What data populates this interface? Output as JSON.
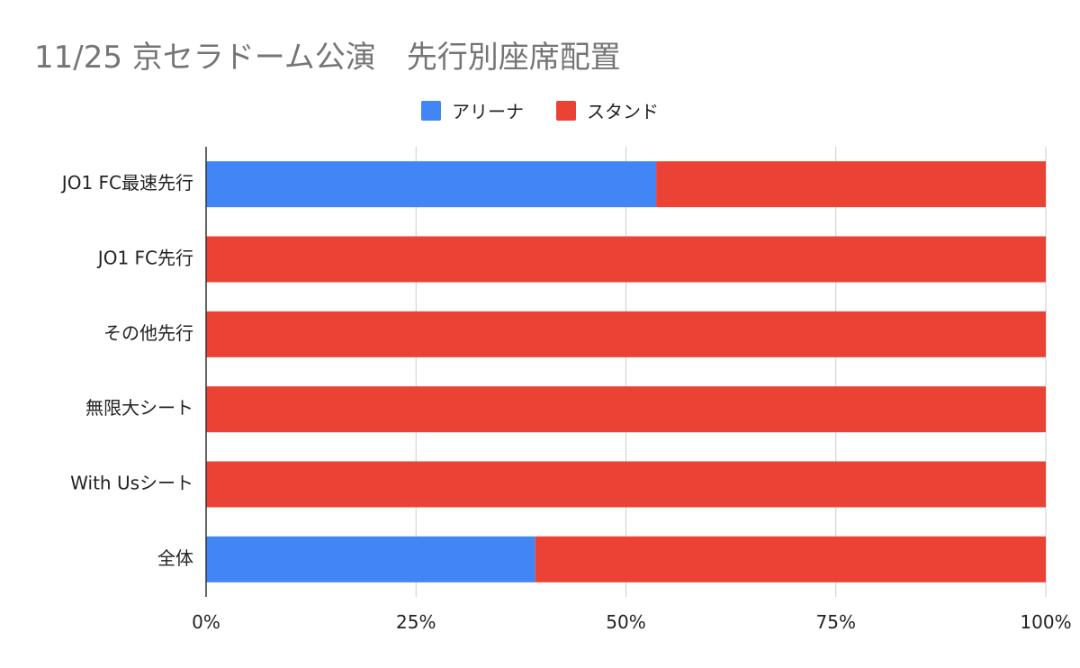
{
  "chart_data": {
    "type": "bar",
    "orientation": "horizontal",
    "stacked": "percent",
    "title": "11/25 京セラドーム公演　先行別座席配置",
    "categories": [
      "JO1 FC最速先行",
      "JO1 FC先行",
      "その他先行",
      "無限大シート",
      "With Usシート",
      "全体"
    ],
    "series": [
      {
        "name": "アリーナ",
        "color": "#4285F4",
        "values": [
          53.6,
          0,
          0,
          0,
          0,
          39.2
        ]
      },
      {
        "name": "スタンド",
        "color": "#EA4335",
        "values": [
          46.4,
          100,
          100,
          100,
          100,
          60.8
        ]
      }
    ],
    "xlim": [
      0,
      100
    ],
    "xticks": [
      "0%",
      "25%",
      "50%",
      "75%",
      "100%"
    ],
    "legend_position": "top",
    "grid": true
  }
}
